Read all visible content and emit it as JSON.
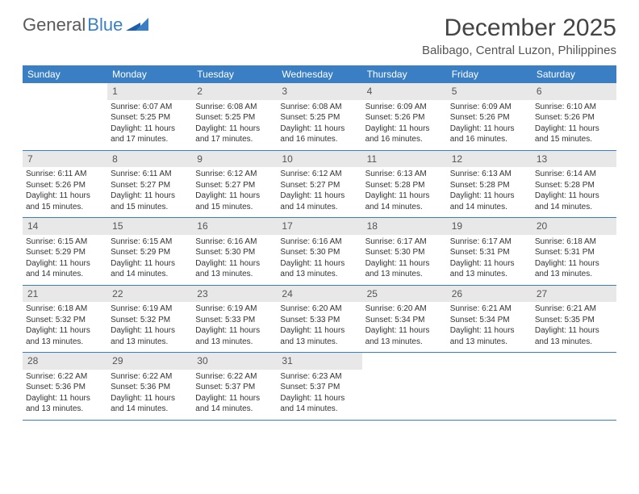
{
  "brand": {
    "part1": "General",
    "part2": "Blue"
  },
  "title": "December 2025",
  "location": "Balibago, Central Luzon, Philippines",
  "colors": {
    "header_bg": "#3a7fc4",
    "daynum_bg": "#e8e8e8",
    "text": "#333333",
    "rule": "#3a7fc4"
  },
  "days_of_week": [
    "Sunday",
    "Monday",
    "Tuesday",
    "Wednesday",
    "Thursday",
    "Friday",
    "Saturday"
  ],
  "weeks": [
    [
      {
        "n": "",
        "sr": "",
        "ss": "",
        "dl": ""
      },
      {
        "n": "1",
        "sr": "6:07 AM",
        "ss": "5:25 PM",
        "dl": "11 hours and 17 minutes."
      },
      {
        "n": "2",
        "sr": "6:08 AM",
        "ss": "5:25 PM",
        "dl": "11 hours and 17 minutes."
      },
      {
        "n": "3",
        "sr": "6:08 AM",
        "ss": "5:25 PM",
        "dl": "11 hours and 16 minutes."
      },
      {
        "n": "4",
        "sr": "6:09 AM",
        "ss": "5:26 PM",
        "dl": "11 hours and 16 minutes."
      },
      {
        "n": "5",
        "sr": "6:09 AM",
        "ss": "5:26 PM",
        "dl": "11 hours and 16 minutes."
      },
      {
        "n": "6",
        "sr": "6:10 AM",
        "ss": "5:26 PM",
        "dl": "11 hours and 15 minutes."
      }
    ],
    [
      {
        "n": "7",
        "sr": "6:11 AM",
        "ss": "5:26 PM",
        "dl": "11 hours and 15 minutes."
      },
      {
        "n": "8",
        "sr": "6:11 AM",
        "ss": "5:27 PM",
        "dl": "11 hours and 15 minutes."
      },
      {
        "n": "9",
        "sr": "6:12 AM",
        "ss": "5:27 PM",
        "dl": "11 hours and 15 minutes."
      },
      {
        "n": "10",
        "sr": "6:12 AM",
        "ss": "5:27 PM",
        "dl": "11 hours and 14 minutes."
      },
      {
        "n": "11",
        "sr": "6:13 AM",
        "ss": "5:28 PM",
        "dl": "11 hours and 14 minutes."
      },
      {
        "n": "12",
        "sr": "6:13 AM",
        "ss": "5:28 PM",
        "dl": "11 hours and 14 minutes."
      },
      {
        "n": "13",
        "sr": "6:14 AM",
        "ss": "5:28 PM",
        "dl": "11 hours and 14 minutes."
      }
    ],
    [
      {
        "n": "14",
        "sr": "6:15 AM",
        "ss": "5:29 PM",
        "dl": "11 hours and 14 minutes."
      },
      {
        "n": "15",
        "sr": "6:15 AM",
        "ss": "5:29 PM",
        "dl": "11 hours and 14 minutes."
      },
      {
        "n": "16",
        "sr": "6:16 AM",
        "ss": "5:30 PM",
        "dl": "11 hours and 13 minutes."
      },
      {
        "n": "17",
        "sr": "6:16 AM",
        "ss": "5:30 PM",
        "dl": "11 hours and 13 minutes."
      },
      {
        "n": "18",
        "sr": "6:17 AM",
        "ss": "5:30 PM",
        "dl": "11 hours and 13 minutes."
      },
      {
        "n": "19",
        "sr": "6:17 AM",
        "ss": "5:31 PM",
        "dl": "11 hours and 13 minutes."
      },
      {
        "n": "20",
        "sr": "6:18 AM",
        "ss": "5:31 PM",
        "dl": "11 hours and 13 minutes."
      }
    ],
    [
      {
        "n": "21",
        "sr": "6:18 AM",
        "ss": "5:32 PM",
        "dl": "11 hours and 13 minutes."
      },
      {
        "n": "22",
        "sr": "6:19 AM",
        "ss": "5:32 PM",
        "dl": "11 hours and 13 minutes."
      },
      {
        "n": "23",
        "sr": "6:19 AM",
        "ss": "5:33 PM",
        "dl": "11 hours and 13 minutes."
      },
      {
        "n": "24",
        "sr": "6:20 AM",
        "ss": "5:33 PM",
        "dl": "11 hours and 13 minutes."
      },
      {
        "n": "25",
        "sr": "6:20 AM",
        "ss": "5:34 PM",
        "dl": "11 hours and 13 minutes."
      },
      {
        "n": "26",
        "sr": "6:21 AM",
        "ss": "5:34 PM",
        "dl": "11 hours and 13 minutes."
      },
      {
        "n": "27",
        "sr": "6:21 AM",
        "ss": "5:35 PM",
        "dl": "11 hours and 13 minutes."
      }
    ],
    [
      {
        "n": "28",
        "sr": "6:22 AM",
        "ss": "5:36 PM",
        "dl": "11 hours and 13 minutes."
      },
      {
        "n": "29",
        "sr": "6:22 AM",
        "ss": "5:36 PM",
        "dl": "11 hours and 14 minutes."
      },
      {
        "n": "30",
        "sr": "6:22 AM",
        "ss": "5:37 PM",
        "dl": "11 hours and 14 minutes."
      },
      {
        "n": "31",
        "sr": "6:23 AM",
        "ss": "5:37 PM",
        "dl": "11 hours and 14 minutes."
      },
      {
        "n": "",
        "sr": "",
        "ss": "",
        "dl": ""
      },
      {
        "n": "",
        "sr": "",
        "ss": "",
        "dl": ""
      },
      {
        "n": "",
        "sr": "",
        "ss": "",
        "dl": ""
      }
    ]
  ],
  "labels": {
    "sunrise": "Sunrise: ",
    "sunset": "Sunset: ",
    "daylight": "Daylight: "
  }
}
